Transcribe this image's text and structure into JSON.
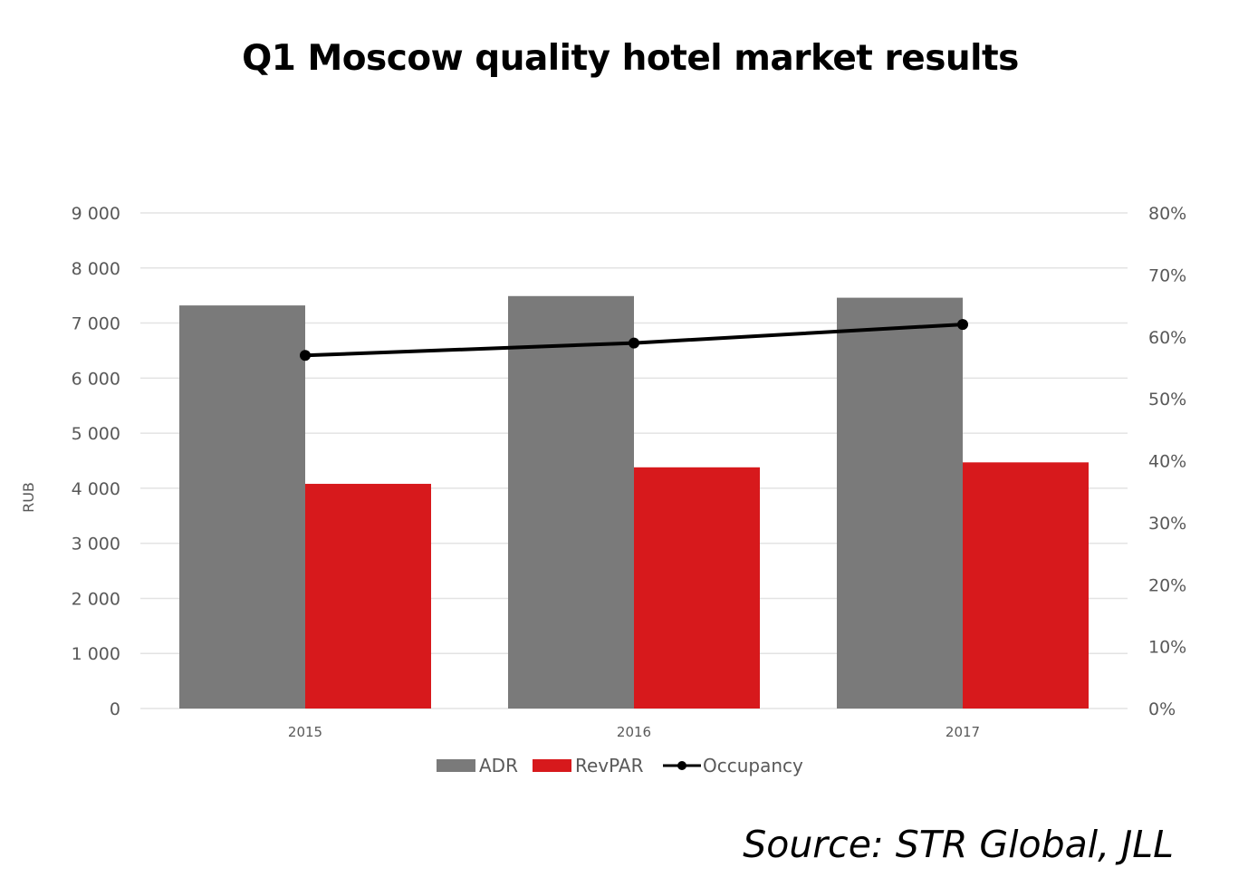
{
  "chart_data": {
    "type": "bar",
    "title": "Q1 Moscow quality hotel market results",
    "ylabel": "RUB",
    "categories": [
      "2015",
      "2016",
      "2017"
    ],
    "ylim": [
      0,
      9000
    ],
    "y2lim": [
      0,
      0.8
    ],
    "y_ticks": [
      "0",
      "1 000",
      "2 000",
      "3 000",
      "4 000",
      "5 000",
      "6 000",
      "7 000",
      "8 000",
      "9 000"
    ],
    "y2_ticks": [
      "0%",
      "10%",
      "20%",
      "30%",
      "40%",
      "50%",
      "60%",
      "70%",
      "80%"
    ],
    "grid": true,
    "legend_position": "bottom",
    "series": [
      {
        "name": "ADR",
        "type": "bar",
        "axis": "left",
        "color": "#7a7a7a",
        "values": [
          7320,
          7490,
          7460
        ]
      },
      {
        "name": "RevPAR",
        "type": "bar",
        "axis": "left",
        "color": "#d7191c",
        "values": [
          4080,
          4380,
          4470
        ]
      },
      {
        "name": "Occupancy",
        "type": "line",
        "axis": "right",
        "color": "#000000",
        "values": [
          0.57,
          0.59,
          0.62
        ]
      }
    ]
  },
  "source": "Source: STR Global, JLL"
}
